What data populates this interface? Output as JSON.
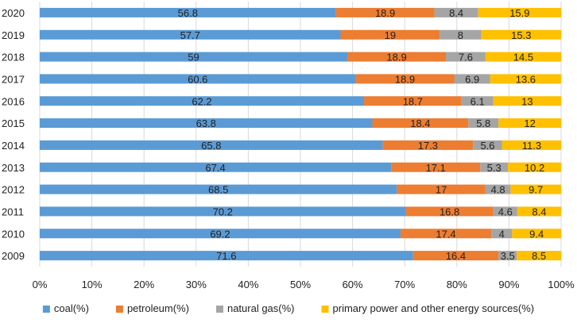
{
  "chart_data": {
    "type": "bar",
    "orientation": "horizontal",
    "stacked": "percent",
    "title": "",
    "xlabel": "",
    "ylabel": "",
    "xlim": [
      0,
      100
    ],
    "x_tick_labels": [
      "0%",
      "10%",
      "20%",
      "30%",
      "40%",
      "50%",
      "60%",
      "70%",
      "80%",
      "90%",
      "100%"
    ],
    "grid": true,
    "legend_position": "bottom",
    "categories": [
      "2020",
      "2019",
      "2018",
      "2017",
      "2016",
      "2015",
      "2014",
      "2013",
      "2012",
      "2011",
      "2010",
      "2009"
    ],
    "series": [
      {
        "name": "coal(%)",
        "color": "#5b9bd5",
        "values": [
          56.8,
          57.7,
          59,
          60.6,
          62.2,
          63.8,
          65.8,
          67.4,
          68.5,
          70.2,
          69.2,
          71.6
        ]
      },
      {
        "name": "petroleum(%)",
        "color": "#ed7d31",
        "values": [
          18.9,
          19,
          18.9,
          18.9,
          18.7,
          18.4,
          17.3,
          17.1,
          17,
          16.8,
          17.4,
          16.4
        ]
      },
      {
        "name": "natural gas(%)",
        "color": "#a5a5a5",
        "values": [
          8.4,
          8,
          7.6,
          6.9,
          6.1,
          5.8,
          5.6,
          5.3,
          4.8,
          4.6,
          4,
          3.5
        ]
      },
      {
        "name": "primary power and other energy sources(%)",
        "color": "#ffc000",
        "values": [
          15.9,
          15.3,
          14.5,
          13.6,
          13,
          12,
          11.3,
          10.2,
          9.7,
          8.4,
          9.4,
          8.5
        ]
      }
    ]
  }
}
